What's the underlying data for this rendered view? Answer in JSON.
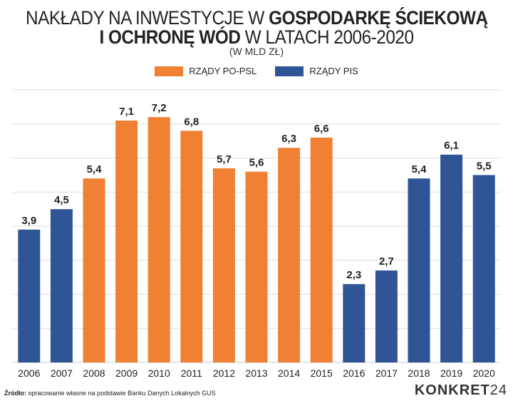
{
  "title": {
    "line1_regular": "NAKŁADY NA INWESTYCJE W ",
    "line1_bold": "GOSPODARKĘ ŚCIEKOWĄ",
    "line2_bold": "I OCHRONĘ WÓD",
    "line2_regular": " W LATACH 2006-2020",
    "subtitle": "(W MLD ZŁ)"
  },
  "source": {
    "label": "Źródło:",
    "text": " opracowanie własne na podstawie Banku Danych Lokalnych GUS"
  },
  "logo": "KONKRET24",
  "colors": {
    "po_psl": "#f08033",
    "pis": "#2f5597",
    "grid": "#dddddd"
  },
  "chart_data": {
    "type": "bar",
    "categories": [
      "2006",
      "2007",
      "2008",
      "2009",
      "2010",
      "2011",
      "2012",
      "2013",
      "2014",
      "2015",
      "2016",
      "2017",
      "2018",
      "2019",
      "2020"
    ],
    "values": [
      3.9,
      4.5,
      5.4,
      7.1,
      7.2,
      6.8,
      5.7,
      5.6,
      6.3,
      6.6,
      2.3,
      2.7,
      5.4,
      6.1,
      5.5
    ],
    "value_labels": [
      "3,9",
      "4,5",
      "5,4",
      "7,1",
      "7,2",
      "6,8",
      "5,7",
      "5,6",
      "6,3",
      "6,6",
      "2,3",
      "2,7",
      "5,4",
      "6,1",
      "5,5"
    ],
    "group": [
      "pis",
      "pis",
      "po_psl",
      "po_psl",
      "po_psl",
      "po_psl",
      "po_psl",
      "po_psl",
      "po_psl",
      "po_psl",
      "pis",
      "pis",
      "pis",
      "pis",
      "pis"
    ],
    "legend": [
      {
        "key": "po_psl",
        "name": "RZĄDY PO-PSL"
      },
      {
        "key": "pis",
        "name": "RZĄDY PIS"
      }
    ],
    "legend_placement": "top-center",
    "ylim": [
      0,
      8
    ],
    "grid": true,
    "y_axis_labels": false
  }
}
